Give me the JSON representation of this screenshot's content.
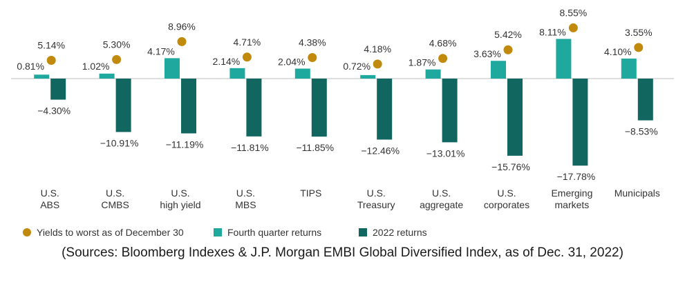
{
  "chart_data": {
    "type": "bar",
    "categories": [
      [
        "U.S.",
        "ABS"
      ],
      [
        "U.S.",
        "CMBS"
      ],
      [
        "U.S.",
        "high yield"
      ],
      [
        "U.S.",
        "MBS"
      ],
      [
        "TIPS"
      ],
      [
        "U.S.",
        "Treasury"
      ],
      [
        "U.S.",
        "aggregate"
      ],
      [
        "U.S.",
        "corporates"
      ],
      [
        "Emerging",
        "markets"
      ],
      [
        "Municipals"
      ]
    ],
    "series": [
      {
        "name": "Fourth quarter returns",
        "kind": "bar",
        "color": "#1fa99e",
        "values": [
          0.81,
          1.02,
          4.17,
          2.14,
          2.04,
          0.72,
          1.87,
          3.63,
          8.11,
          4.1
        ],
        "labels": [
          "0.81%",
          "1.02%",
          "4.17%",
          "2.14%",
          "2.04%",
          "0.72%",
          "1.87%",
          "3.63%",
          "8.11%",
          "4.10%"
        ]
      },
      {
        "name": "2022 returns",
        "kind": "bar",
        "color": "#126660",
        "values": [
          -4.3,
          -10.91,
          -11.19,
          -11.81,
          -11.85,
          -12.46,
          -13.01,
          -15.76,
          -17.78,
          -8.53
        ],
        "labels": [
          "−4.30%",
          "−10.91%",
          "−11.19%",
          "−11.81%",
          "−11.85%",
          "−12.46%",
          "−13.01%",
          "−15.76%",
          "−17.78%",
          "−8.53%"
        ]
      },
      {
        "name": "Yields to worst as of December 30",
        "kind": "dot",
        "color": "#c18a0c",
        "values": [
          5.14,
          5.3,
          8.96,
          4.71,
          4.38,
          4.18,
          4.68,
          5.42,
          8.55,
          3.55
        ],
        "labels": [
          "5.14%",
          "5.30%",
          "8.96%",
          "4.71%",
          "4.38%",
          "4.18%",
          "4.68%",
          "5.42%",
          "8.55%",
          "3.55%"
        ]
      }
    ],
    "legend": {
      "position": "bottom-left",
      "items": [
        {
          "label": "Yields to worst as of December 30",
          "marker": "circle",
          "color": "#c18a0c"
        },
        {
          "label": "Fourth quarter returns",
          "marker": "square",
          "color": "#1fa99e"
        },
        {
          "label": "2022 returns",
          "marker": "square",
          "color": "#126660"
        }
      ]
    },
    "y_axis_visible": false,
    "grid": false,
    "zero_line": true,
    "ylim": [
      -18,
      9.5
    ]
  },
  "source_note": "(Sources: Bloomberg Indexes & J.P. Morgan EMBI Global Diversified Index, as of Dec. 31, 2022)"
}
